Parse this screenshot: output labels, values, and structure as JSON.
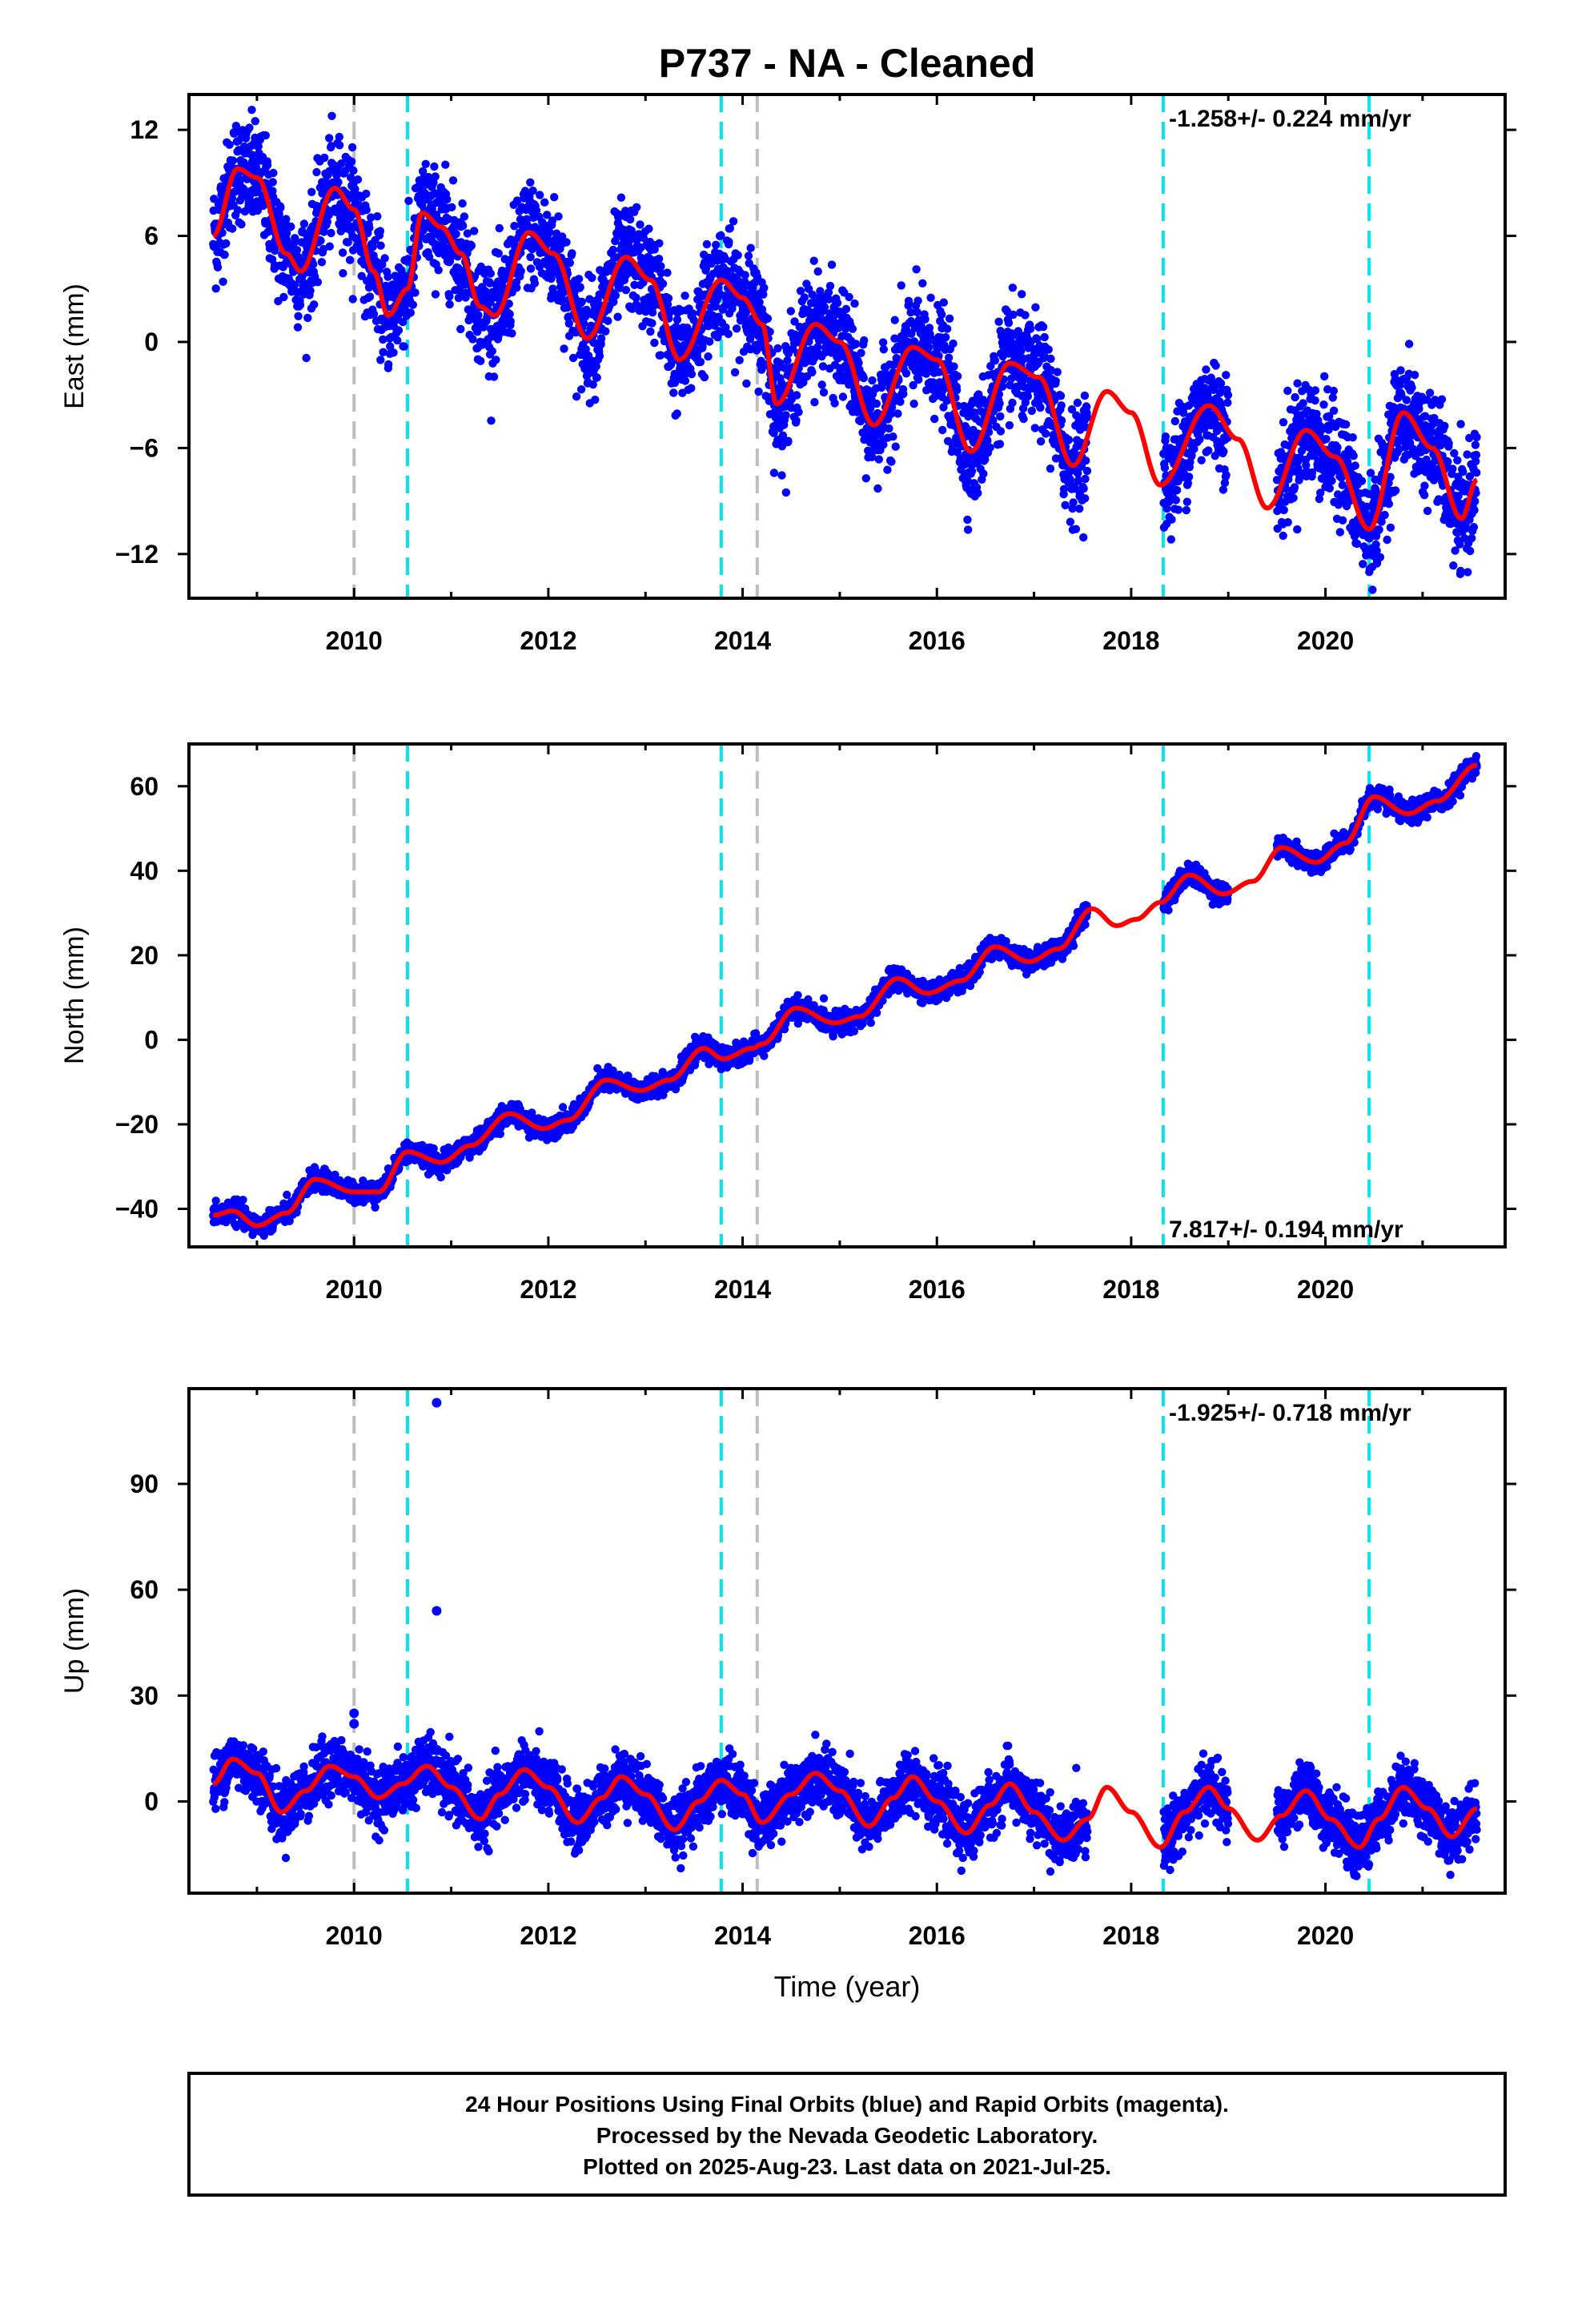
{
  "colors": {
    "points_final": "#0000ff",
    "model_line": "#ff0000",
    "event_cyan": "#00e5ee",
    "event_gray": "#bdbdbd",
    "frame": "#000000"
  },
  "chart_data": {
    "title": "P737  - NA - Cleaned",
    "xlabel": "Time (year)",
    "x_ticks": [
      "2010",
      "2012",
      "2014",
      "2016",
      "2018",
      "2020"
    ],
    "xlim": [
      2008.3,
      2021.85
    ],
    "events_cyan": [
      2010.55,
      2013.78,
      2018.33,
      2020.45
    ],
    "events_gray": [
      2010.0,
      2014.15
    ],
    "data_gaps": [
      [
        2017.55,
        2018.33
      ],
      [
        2019.0,
        2019.5
      ]
    ],
    "start": 2008.55,
    "end": 2021.56,
    "footer": [
      "24 Hour Positions Using Final Orbits (blue) and Rapid Orbits (magenta).",
      "Processed by the Nevada Geodetic Laboratory.",
      "Plotted on 2025-Aug-23. Last data on 2021-Jul-25."
    ],
    "panels": [
      {
        "type": "scatter",
        "ylabel": "East (mm)",
        "ylim": [
          -14.5,
          14
        ],
        "y_ticks": [
          12,
          6,
          0,
          -6,
          -12
        ],
        "rate_text": "-1.258+/- 0.224 mm/yr",
        "rate_position": "top-right",
        "trend_offset_mm": 6.5,
        "velocity_mm_per_yr": -1.258,
        "annual_amplitude_mm": 3.0,
        "annual_peak_year_fraction": 0.8,
        "scatter_mm": 1.5,
        "model": [
          [
            2008.55,
            6.0
          ],
          [
            2008.8,
            9.8
          ],
          [
            2009.0,
            9.3
          ],
          [
            2009.3,
            5.0
          ],
          [
            2009.45,
            4.0
          ],
          [
            2009.8,
            8.7
          ],
          [
            2010.0,
            7.5
          ],
          [
            2010.2,
            4.0
          ],
          [
            2010.35,
            1.5
          ],
          [
            2010.55,
            3.0
          ],
          [
            2010.7,
            7.3
          ],
          [
            2010.9,
            6.5
          ],
          [
            2011.1,
            5.0
          ],
          [
            2011.3,
            2.0
          ],
          [
            2011.45,
            1.5
          ],
          [
            2011.8,
            6.2
          ],
          [
            2012.05,
            5.0
          ],
          [
            2012.4,
            0.2
          ],
          [
            2012.8,
            4.8
          ],
          [
            2013.05,
            3.5
          ],
          [
            2013.35,
            -1.0
          ],
          [
            2013.78,
            3.5
          ],
          [
            2014.0,
            2.5
          ],
          [
            2014.2,
            1.0
          ],
          [
            2014.35,
            -3.5
          ],
          [
            2014.75,
            1.0
          ],
          [
            2015.0,
            0.0
          ],
          [
            2015.35,
            -4.7
          ],
          [
            2015.75,
            -0.3
          ],
          [
            2016.0,
            -1.0
          ],
          [
            2016.35,
            -6.2
          ],
          [
            2016.75,
            -1.2
          ],
          [
            2017.05,
            -2.0
          ],
          [
            2017.4,
            -7.0
          ],
          [
            2017.75,
            -2.8
          ],
          [
            2018.0,
            -4.0
          ],
          [
            2018.3,
            -8.1
          ],
          [
            2018.8,
            -3.6
          ],
          [
            2019.1,
            -5.5
          ],
          [
            2019.4,
            -9.4
          ],
          [
            2019.8,
            -5.0
          ],
          [
            2020.1,
            -6.5
          ],
          [
            2020.45,
            -10.6
          ],
          [
            2020.8,
            -4.0
          ],
          [
            2021.1,
            -6.0
          ],
          [
            2021.4,
            -10.0
          ],
          [
            2021.56,
            -7.8
          ]
        ]
      },
      {
        "type": "scatter",
        "ylabel": "North (mm)",
        "ylim": [
          -49,
          70
        ],
        "y_ticks": [
          60,
          40,
          20,
          0,
          -20,
          -40
        ],
        "rate_text": "7.817+/- 0.194 mm/yr",
        "rate_position": "bottom-right",
        "trend_offset_mm": -42.5,
        "velocity_mm_per_yr": 7.817,
        "annual_amplitude_mm": 2.0,
        "annual_peak_year_fraction": 0.55,
        "scatter_mm": 1.2,
        "model": [
          [
            2008.55,
            -41.5
          ],
          [
            2008.75,
            -40.5
          ],
          [
            2009.0,
            -44.0
          ],
          [
            2009.3,
            -41.0
          ],
          [
            2009.6,
            -33.0
          ],
          [
            2010.0,
            -36.0
          ],
          [
            2010.25,
            -36.0
          ],
          [
            2010.55,
            -26.5
          ],
          [
            2010.9,
            -29.0
          ],
          [
            2011.2,
            -25.0
          ],
          [
            2011.6,
            -17.5
          ],
          [
            2011.95,
            -21.0
          ],
          [
            2012.2,
            -19.0
          ],
          [
            2012.6,
            -9.5
          ],
          [
            2012.95,
            -12.0
          ],
          [
            2013.25,
            -9.5
          ],
          [
            2013.6,
            -2.0
          ],
          [
            2013.8,
            -4.5
          ],
          [
            2014.1,
            -2.0
          ],
          [
            2014.2,
            -1.0
          ],
          [
            2014.55,
            7.5
          ],
          [
            2014.95,
            4.0
          ],
          [
            2015.2,
            5.5
          ],
          [
            2015.6,
            14.5
          ],
          [
            2015.9,
            11.0
          ],
          [
            2016.25,
            14.0
          ],
          [
            2016.6,
            22.0
          ],
          [
            2016.95,
            18.5
          ],
          [
            2017.25,
            21.5
          ],
          [
            2017.6,
            31.0
          ],
          [
            2017.85,
            27.0
          ],
          [
            2018.05,
            28.5
          ],
          [
            2018.3,
            32.5
          ],
          [
            2018.6,
            39.0
          ],
          [
            2018.95,
            34.5
          ],
          [
            2019.25,
            37.5
          ],
          [
            2019.55,
            45.5
          ],
          [
            2019.9,
            42.0
          ],
          [
            2020.2,
            46.5
          ],
          [
            2020.5,
            57.5
          ],
          [
            2020.85,
            53.5
          ],
          [
            2021.15,
            56.5
          ],
          [
            2021.56,
            65.0
          ]
        ]
      },
      {
        "type": "scatter",
        "ylabel": "Up (mm)",
        "ylim": [
          -26,
          117
        ],
        "y_ticks": [
          90,
          60,
          30,
          0
        ],
        "rate_text": "-1.925+/- 0.718 mm/yr",
        "rate_position": "top-right",
        "trend_offset_mm": 2.0,
        "velocity_mm_per_yr": -1.925,
        "annual_amplitude_mm": 9.0,
        "annual_peak_year_fraction": 0.72,
        "scatter_mm": 4.0,
        "outliers": [
          [
            2010.85,
            113
          ],
          [
            2010.85,
            54
          ],
          [
            2010.0,
            25
          ],
          [
            2010.0,
            22
          ]
        ],
        "model": [
          [
            2008.55,
            5.0
          ],
          [
            2008.75,
            12.0
          ],
          [
            2009.0,
            8.0
          ],
          [
            2009.25,
            -3.0
          ],
          [
            2009.5,
            3.0
          ],
          [
            2009.75,
            10.0
          ],
          [
            2010.0,
            7.0
          ],
          [
            2010.25,
            1.0
          ],
          [
            2010.5,
            5.0
          ],
          [
            2010.75,
            10.0
          ],
          [
            2011.0,
            4.0
          ],
          [
            2011.3,
            -5.0
          ],
          [
            2011.5,
            2.0
          ],
          [
            2011.75,
            9.0
          ],
          [
            2012.0,
            4.0
          ],
          [
            2012.3,
            -6.0
          ],
          [
            2012.55,
            1.0
          ],
          [
            2012.75,
            7.0
          ],
          [
            2013.0,
            2.0
          ],
          [
            2013.3,
            -8.0
          ],
          [
            2013.55,
            0.0
          ],
          [
            2013.78,
            6.0
          ],
          [
            2014.0,
            2.0
          ],
          [
            2014.2,
            -6.0
          ],
          [
            2014.5,
            2.0
          ],
          [
            2014.75,
            8.0
          ],
          [
            2015.0,
            3.0
          ],
          [
            2015.3,
            -7.0
          ],
          [
            2015.55,
            1.0
          ],
          [
            2015.75,
            7.0
          ],
          [
            2016.0,
            0.0
          ],
          [
            2016.3,
            -9.0
          ],
          [
            2016.55,
            -1.0
          ],
          [
            2016.75,
            5.0
          ],
          [
            2017.0,
            -3.0
          ],
          [
            2017.3,
            -11.0
          ],
          [
            2017.55,
            -5.0
          ],
          [
            2017.75,
            4.0
          ],
          [
            2018.0,
            -3.0
          ],
          [
            2018.3,
            -13.0
          ],
          [
            2018.55,
            -3.0
          ],
          [
            2018.8,
            4.0
          ],
          [
            2019.0,
            -2.0
          ],
          [
            2019.3,
            -11.0
          ],
          [
            2019.55,
            -4.0
          ],
          [
            2019.8,
            3.0
          ],
          [
            2020.05,
            -5.0
          ],
          [
            2020.35,
            -13.0
          ],
          [
            2020.55,
            -5.0
          ],
          [
            2020.8,
            4.0
          ],
          [
            2021.05,
            -2.0
          ],
          [
            2021.3,
            -10.0
          ],
          [
            2021.56,
            -2.0
          ]
        ]
      }
    ]
  }
}
